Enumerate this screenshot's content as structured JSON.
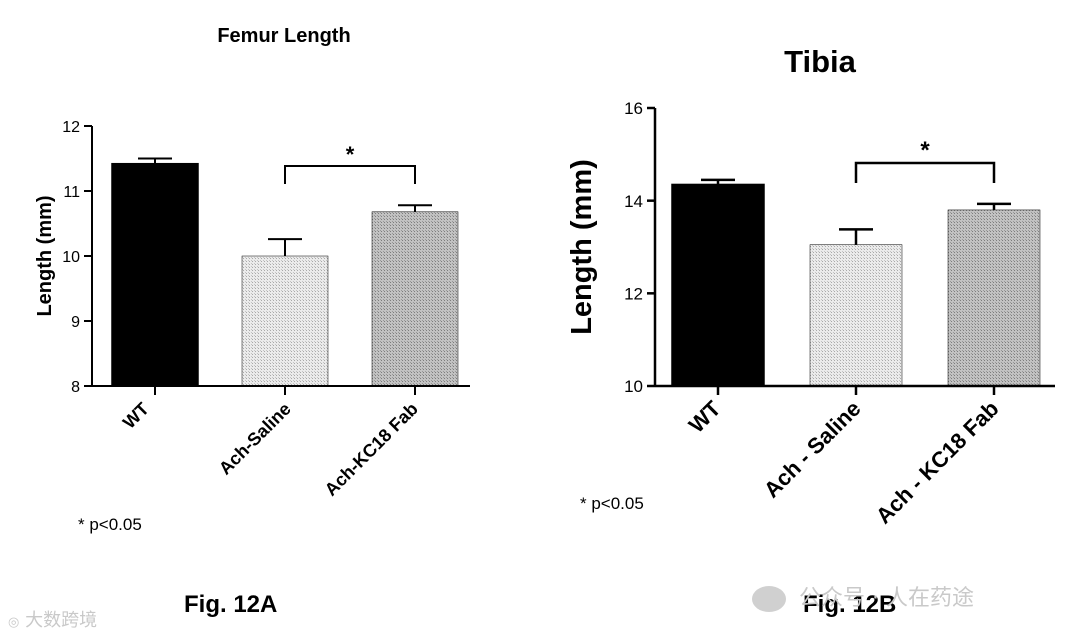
{
  "colors": {
    "wt": "#000000",
    "saline": "#e2e2e2",
    "fab": "#b4b4b4",
    "axis": "#000000",
    "watermark": "#c8c8c8"
  },
  "chart_data": [
    {
      "type": "bar",
      "title": "Femur Length",
      "ylabel": "Length (mm)",
      "ylim": [
        8,
        12
      ],
      "yticks": [
        8,
        9,
        10,
        11,
        12
      ],
      "ytick_labels": [
        "8",
        "9",
        "10",
        "11",
        "12"
      ],
      "categories": [
        "WT",
        "Ach-Saline",
        "Ach-KC18 Fab"
      ],
      "values": [
        11.42,
        10.0,
        10.68
      ],
      "errors": [
        0.08,
        0.26,
        0.1
      ],
      "significance": {
        "from": 1,
        "to": 2,
        "label": "*"
      },
      "footnote": "* p<0.05",
      "caption": "Fig. 12A"
    },
    {
      "type": "bar",
      "title": "Tibia",
      "ylabel": "Length (mm)",
      "ylim": [
        10,
        16
      ],
      "yticks": [
        10,
        12,
        14,
        16
      ],
      "ytick_labels": [
        "10",
        "12",
        "14",
        "16"
      ],
      "categories": [
        "WT",
        "Ach - Saline",
        "Ach - KC18 Fab"
      ],
      "values": [
        14.35,
        13.05,
        13.8
      ],
      "errors": [
        0.1,
        0.33,
        0.13
      ],
      "significance": {
        "from": 1,
        "to": 2,
        "label": "*"
      },
      "footnote": "* p<0.05",
      "caption": "Fig. 12B"
    }
  ],
  "watermarks": {
    "left": "大数跨境",
    "right_account": "公众号 · 人在药途"
  }
}
